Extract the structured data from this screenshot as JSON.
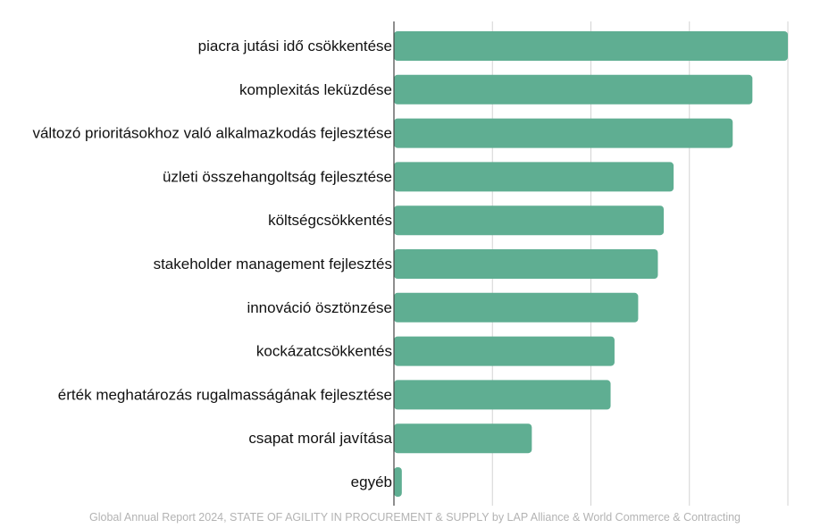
{
  "colors": {
    "bar": "#5fae92",
    "grid": "#d3d3d3",
    "axis": "#444444",
    "label": "#111111",
    "footer": "#b3b3b3"
  },
  "footer": {
    "source": "Global Annual Report 2024, STATE OF AGILITY IN PROCUREMENT & SUPPLY by LAP Alliance & World Commerce & Contracting"
  },
  "chart_data": {
    "type": "bar",
    "orientation": "horizontal",
    "title": "",
    "xlabel": "",
    "ylabel": "",
    "xlim": [
      0,
      100
    ],
    "grid": true,
    "legend": "none",
    "categories": [
      "piacra jutási idő csökkentése",
      "komplexitás leküzdése",
      "változó prioritásokhoz való alkalmazkodás fejlesztése",
      "üzleti összehangoltság fejlesztése",
      "költségcsökkentés",
      "stakeholder management fejlesztés",
      "innováció ösztönzése",
      "kockázatcsökkentés",
      "érték meghatározás rugalmasságának fejlesztése",
      "csapat morál javítása",
      "egyéb"
    ],
    "values": [
      100,
      91,
      86,
      71,
      68.5,
      67,
      62,
      56,
      55,
      35,
      2
    ]
  }
}
